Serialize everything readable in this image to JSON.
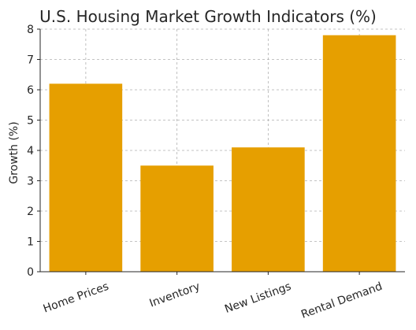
{
  "chart_data": {
    "type": "bar",
    "title": "U.S. Housing Market Growth Indicators (%)",
    "xlabel": "",
    "ylabel": "Growth (%)",
    "categories": [
      "Home Prices",
      "Inventory",
      "New Listings",
      "Rental Demand"
    ],
    "values": [
      6.2,
      3.5,
      4.1,
      7.8
    ],
    "ylim": [
      0,
      8
    ],
    "yticks": [
      0,
      1,
      2,
      3,
      4,
      5,
      6,
      7,
      8
    ],
    "grid": true,
    "bar_color": "#E69F00"
  }
}
